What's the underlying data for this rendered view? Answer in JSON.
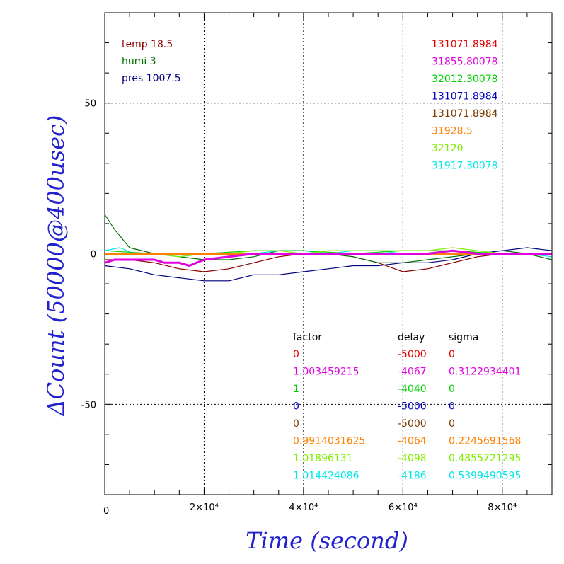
{
  "chart_data": {
    "type": "line",
    "xlabel": "Time (second)",
    "ylabel": "ΔCount (50000@400usec)",
    "xlim": [
      0,
      90000
    ],
    "ylim": [
      -80,
      80
    ],
    "x_ticks": [
      {
        "value": 0,
        "label": "0"
      },
      {
        "value": 20000,
        "label": "2×10⁴"
      },
      {
        "value": 40000,
        "label": "4×10⁴"
      },
      {
        "value": 60000,
        "label": "6×10⁴"
      },
      {
        "value": 80000,
        "label": "8×10⁴"
      }
    ],
    "y_ticks": [
      {
        "value": 50,
        "label": "50"
      },
      {
        "value": 0,
        "label": "0"
      },
      {
        "value": -50,
        "label": "-50"
      }
    ],
    "grid": true,
    "env_legend": [
      {
        "text": "temp 18.5",
        "color": "#8b0000"
      },
      {
        "text": "humi 3",
        "color": "#007000"
      },
      {
        "text": "pres 1007.5",
        "color": "#000080"
      }
    ],
    "offsets": [
      {
        "text": "131071.8984",
        "color": "#e00000"
      },
      {
        "text": "31855.80078",
        "color": "#e000e0"
      },
      {
        "text": "32012.30078",
        "color": "#00d000"
      },
      {
        "text": "131071.8984",
        "color": "#0000c0"
      },
      {
        "text": "131071.8984",
        "color": "#7a3a00"
      },
      {
        "text": "31928.5",
        "color": "#ff8000"
      },
      {
        "text": "32120",
        "color": "#80ee00"
      },
      {
        "text": "31917.30078",
        "color": "#00e8e8"
      }
    ],
    "param_table": {
      "headers": [
        "factor",
        "delay",
        "sigma"
      ],
      "header_color": "#000000",
      "rows": [
        {
          "factor": "0",
          "delay": "-5000",
          "sigma": "0",
          "color": "#e00000"
        },
        {
          "factor": "1.003459215",
          "delay": "-4067",
          "sigma": "0.3122934401",
          "color": "#e000e0"
        },
        {
          "factor": "1",
          "delay": "-4040",
          "sigma": "0",
          "color": "#00d000"
        },
        {
          "factor": "0",
          "delay": "-5000",
          "sigma": "0",
          "color": "#0000c0"
        },
        {
          "factor": "0",
          "delay": "-5000",
          "sigma": "0",
          "color": "#7a3a00"
        },
        {
          "factor": "0.9914031625",
          "delay": "-4064",
          "sigma": "0.2245691568",
          "color": "#ff8000"
        },
        {
          "factor": "1.01896131",
          "delay": "-4098",
          "sigma": "0.4855721295",
          "color": "#80ee00"
        },
        {
          "factor": "1.014424086",
          "delay": "-4186",
          "sigma": "0.5399490595",
          "color": "#00e8e8"
        }
      ]
    },
    "series": [
      {
        "color": "#8b0000",
        "x": [
          0,
          5000,
          10000,
          15000,
          20000,
          25000,
          30000,
          35000,
          40000,
          45000,
          50000,
          55000,
          60000,
          65000,
          70000,
          75000,
          80000,
          85000,
          90000
        ],
        "y": [
          -2,
          -2,
          -3,
          -5,
          -6,
          -5,
          -3,
          -1,
          0,
          0,
          -1,
          -3,
          -6,
          -5,
          -3,
          -1,
          0,
          0,
          0
        ]
      },
      {
        "color": "#007000",
        "x": [
          0,
          2000,
          5000,
          10000,
          15000,
          20000,
          25000,
          30000,
          35000,
          40000,
          45000,
          50000,
          55000,
          60000,
          65000,
          70000,
          75000,
          80000,
          85000,
          90000
        ],
        "y": [
          13,
          8,
          2,
          0,
          -1,
          -2,
          -2,
          -1,
          1,
          1,
          0,
          -1,
          -3,
          -3,
          -2,
          -1,
          0,
          1,
          0,
          -2
        ]
      },
      {
        "color": "#000080",
        "x": [
          0,
          5000,
          10000,
          15000,
          20000,
          25000,
          30000,
          35000,
          40000,
          45000,
          50000,
          55000,
          60000,
          65000,
          70000,
          75000,
          80000,
          85000,
          90000
        ],
        "y": [
          -4,
          -5,
          -7,
          -8,
          -9,
          -9,
          -7,
          -7,
          -6,
          -5,
          -4,
          -4,
          -3,
          -3,
          -2,
          0,
          1,
          2,
          1
        ]
      },
      {
        "color": "#7a3a00",
        "x": [
          0,
          90000
        ],
        "y": [
          0,
          0
        ]
      },
      {
        "color": "#e00000",
        "x": [
          0,
          90000
        ],
        "y": [
          0,
          0
        ]
      },
      {
        "color": "#0000c0",
        "x": [
          0,
          90000
        ],
        "y": [
          0,
          0
        ]
      },
      {
        "color": "#00e8e8",
        "x": [
          0,
          3000,
          6000,
          10000,
          15000,
          20000,
          25000,
          30000,
          35000,
          40000,
          45000,
          50000,
          55000,
          60000,
          65000,
          70000,
          75000,
          80000,
          85000,
          90000
        ],
        "y": [
          1,
          2,
          0,
          0,
          -1,
          0,
          0,
          0,
          1,
          1,
          0,
          1,
          1,
          0,
          0,
          1,
          0,
          0,
          0,
          -1
        ]
      },
      {
        "color": "#00d000",
        "x": [
          0,
          10000,
          20000,
          30000,
          40000,
          50000,
          60000,
          70000,
          80000,
          90000
        ],
        "y": [
          1,
          0,
          0,
          1,
          1,
          0,
          1,
          1,
          0,
          0
        ]
      },
      {
        "color": "#80ee00",
        "x": [
          0,
          5000,
          10000,
          15000,
          20000,
          25000,
          30000,
          35000,
          40000,
          45000,
          50000,
          55000,
          60000,
          65000,
          70000,
          75000,
          80000,
          85000,
          90000
        ],
        "y": [
          0,
          0,
          0,
          -1,
          0,
          0,
          1,
          1,
          0,
          1,
          1,
          1,
          1,
          1,
          2,
          1,
          0,
          0,
          0
        ]
      },
      {
        "color": "#ff8000",
        "x": [
          0,
          10000,
          20000,
          30000,
          40000,
          50000,
          60000,
          70000,
          80000,
          90000
        ],
        "y": [
          0,
          0,
          0,
          0,
          0,
          0,
          0,
          0,
          0,
          0
        ]
      },
      {
        "color": "#e000e0",
        "x": [
          0,
          2000,
          5000,
          8000,
          10000,
          12000,
          15000,
          17000,
          20000,
          25000,
          30000,
          35000,
          40000,
          45000,
          50000,
          55000,
          60000,
          65000,
          70000,
          75000,
          80000,
          85000,
          90000
        ],
        "y": [
          -3,
          -2,
          -2,
          -2,
          -2,
          -3,
          -3,
          -4,
          -2,
          -1,
          0,
          0,
          0,
          0,
          0,
          0,
          0,
          0,
          1,
          0,
          0,
          0,
          0
        ]
      }
    ]
  }
}
